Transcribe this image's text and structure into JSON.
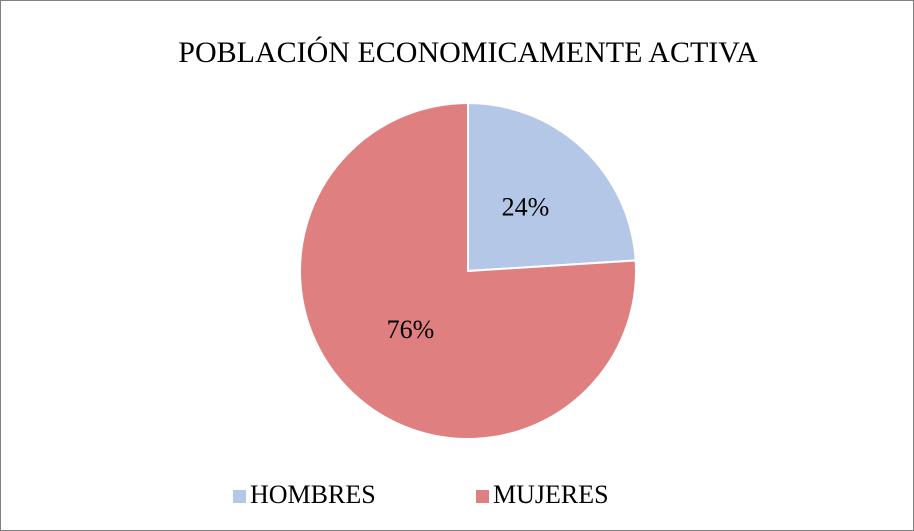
{
  "chart_data": {
    "type": "pie",
    "title": "POBLACIÓN ECONOMICAMENTE ACTIVA",
    "categories": [
      "HOMBRES",
      "MUJERES"
    ],
    "values": [
      24,
      76
    ],
    "value_labels": [
      "24%",
      "76%"
    ],
    "colors": [
      "#b4c7e7",
      "#e07f7f"
    ],
    "legend": "bottom"
  }
}
